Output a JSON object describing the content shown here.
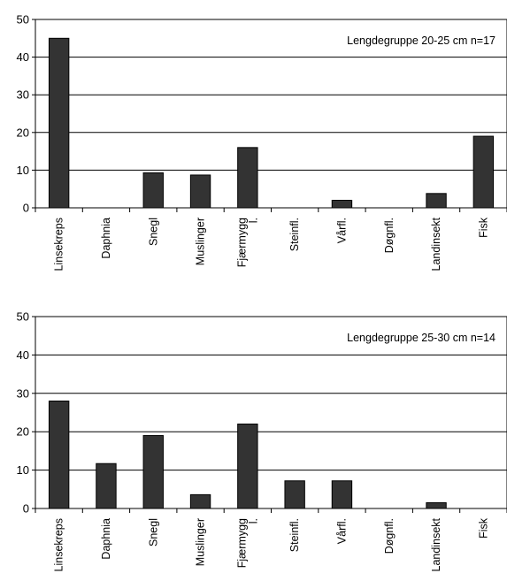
{
  "chart_data": [
    {
      "type": "bar",
      "annotation": "Lengdegruppe 20-25 cm n=17",
      "categories": [
        "Linsekreps",
        "Daphnia",
        "Snegl",
        "Muslinger",
        "Fjærmygg l.",
        "Steinfl.",
        "Vårfl.",
        "Døgnfl.",
        "Landinsekt",
        "Fisk"
      ],
      "category_lines": [
        [
          "Linsekreps"
        ],
        [
          "Daphnia"
        ],
        [
          "Snegl"
        ],
        [
          "Muslinger"
        ],
        [
          "Fjærmygg",
          "l."
        ],
        [
          "Steinfl."
        ],
        [
          "Vårfl."
        ],
        [
          "Døgnfl."
        ],
        [
          "Landinsekt"
        ],
        [
          "Fisk"
        ]
      ],
      "values": [
        45,
        0,
        9.3,
        8.7,
        16,
        0,
        2,
        0,
        3.8,
        19
      ],
      "ylim": [
        0,
        50
      ],
      "yticks": [
        0,
        10,
        20,
        30,
        40,
        50
      ],
      "grid": true,
      "bar_color": "#333333"
    },
    {
      "type": "bar",
      "annotation": "Lengdegruppe 25-30 cm n=14",
      "categories": [
        "Linsekreps",
        "Daphnia",
        "Snegl",
        "Muslinger",
        "Fjærmygg l.",
        "Steinfl.",
        "Vårfl.",
        "Døgnfl.",
        "Landinsekt",
        "Fisk"
      ],
      "category_lines": [
        [
          "Linsekreps"
        ],
        [
          "Daphnia"
        ],
        [
          "Snegl"
        ],
        [
          "Muslinger"
        ],
        [
          "Fjærmygg",
          "l."
        ],
        [
          "Steinfl."
        ],
        [
          "Vårfl."
        ],
        [
          "Døgnfl."
        ],
        [
          "Landinsekt"
        ],
        [
          "Fisk"
        ]
      ],
      "values": [
        28,
        11.7,
        19,
        3.6,
        22,
        7.2,
        7.2,
        0,
        1.5,
        0
      ],
      "ylim": [
        0,
        50
      ],
      "yticks": [
        0,
        10,
        20,
        30,
        40,
        50
      ],
      "grid": true,
      "bar_color": "#333333"
    }
  ]
}
